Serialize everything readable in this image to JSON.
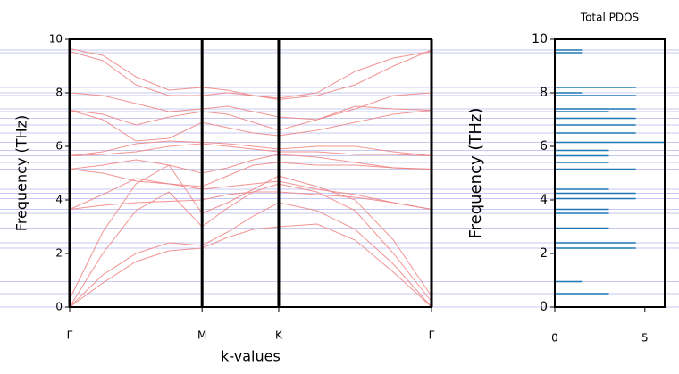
{
  "chart_data": [
    {
      "type": "line",
      "xlabel": "k-values",
      "ylabel": "Frequency (THz)",
      "color": "#f08080",
      "x": [
        0,
        0.144,
        0.289,
        0.433,
        0.577,
        0.688,
        0.8,
        0.911,
        1.078,
        1.244,
        1.411,
        1.577
      ],
      "xlim": [
        0,
        1.577
      ],
      "xticks": [
        {
          "value": 0,
          "label": "Γ"
        },
        {
          "value": 0.577,
          "label": "M"
        },
        {
          "value": 0.911,
          "label": "K"
        },
        {
          "value": 1.577,
          "label": "Γ"
        }
      ],
      "ylim": [
        0,
        10
      ],
      "yticks": [
        0,
        2,
        4,
        6,
        8,
        10
      ],
      "series": [
        {
          "values": [
            0,
            0.9,
            1.7,
            2.1,
            2.2,
            2.6,
            2.9,
            3.0,
            3.1,
            2.5,
            1.3,
            0
          ]
        },
        {
          "values": [
            0,
            1.2,
            2.0,
            2.4,
            2.3,
            2.8,
            3.4,
            3.9,
            3.6,
            2.9,
            1.6,
            0
          ]
        },
        {
          "values": [
            0,
            2.0,
            3.6,
            4.3,
            3.0,
            3.7,
            4.3,
            4.6,
            4.3,
            3.6,
            2.0,
            0.2
          ]
        },
        {
          "values": [
            0.3,
            2.8,
            4.6,
            5.3,
            3.5,
            3.9,
            4.4,
            4.9,
            4.5,
            4.0,
            2.5,
            0.4
          ]
        },
        {
          "values": [
            3.65,
            3.8,
            3.9,
            3.95,
            4.0,
            4.2,
            4.3,
            4.3,
            4.2,
            4.1,
            3.9,
            3.65
          ]
        },
        {
          "values": [
            3.65,
            4.2,
            4.8,
            4.6,
            4.4,
            4.5,
            4.6,
            4.7,
            4.4,
            4.2,
            3.9,
            3.65
          ]
        },
        {
          "values": [
            5.15,
            5.0,
            4.7,
            4.6,
            4.5,
            4.9,
            5.3,
            5.4,
            5.3,
            5.3,
            5.2,
            5.15
          ]
        },
        {
          "values": [
            5.15,
            5.3,
            5.5,
            5.3,
            5.0,
            5.2,
            5.5,
            5.7,
            5.6,
            5.4,
            5.2,
            5.15
          ]
        },
        {
          "values": [
            5.65,
            5.7,
            5.8,
            6.0,
            6.1,
            6.0,
            5.9,
            5.8,
            5.8,
            5.7,
            5.7,
            5.65
          ]
        },
        {
          "values": [
            5.65,
            5.8,
            6.1,
            6.2,
            6.15,
            6.1,
            6.0,
            5.9,
            6.0,
            6.0,
            5.8,
            5.65
          ]
        },
        {
          "values": [
            7.35,
            7.0,
            6.2,
            6.3,
            6.9,
            6.7,
            6.5,
            6.4,
            6.6,
            6.9,
            7.2,
            7.35
          ]
        },
        {
          "values": [
            7.35,
            7.2,
            6.8,
            7.1,
            7.3,
            7.2,
            6.9,
            6.6,
            7.0,
            7.5,
            7.4,
            7.35
          ]
        },
        {
          "values": [
            8.0,
            7.9,
            7.6,
            7.3,
            7.4,
            7.5,
            7.3,
            7.1,
            7.0,
            7.4,
            7.9,
            8.0
          ]
        },
        {
          "values": [
            9.55,
            9.2,
            8.3,
            7.9,
            7.9,
            8.0,
            7.9,
            7.8,
            8.0,
            8.8,
            9.3,
            9.55
          ]
        },
        {
          "values": [
            9.65,
            9.4,
            8.6,
            8.1,
            8.2,
            8.1,
            7.9,
            7.75,
            7.9,
            8.3,
            9.0,
            9.6
          ]
        }
      ]
    },
    {
      "type": "hbar",
      "title": "Total PDOS",
      "ylabel": "Frequency (THz)",
      "color": "#1f77b4",
      "y": [
        9.6,
        9.5,
        8.2,
        8.0,
        7.9,
        7.4,
        7.3,
        7.05,
        6.8,
        6.5,
        6.15,
        5.85,
        5.65,
        5.4,
        5.15,
        4.4,
        4.25,
        4.05,
        3.65,
        3.5,
        2.95,
        2.4,
        2.2,
        0.95,
        0.5,
        0
      ],
      "values": [
        1.5,
        1.5,
        4.5,
        1.5,
        4.5,
        4.5,
        3.0,
        4.5,
        4.5,
        4.5,
        6.1,
        3.0,
        3.0,
        3.0,
        4.5,
        3.0,
        4.5,
        4.5,
        3.0,
        3.0,
        3.0,
        4.5,
        4.5,
        1.5,
        3.0,
        4.5
      ],
      "xlim": [
        0,
        6.1
      ],
      "xticks": [
        0,
        5
      ],
      "ylim": [
        0,
        10
      ],
      "yticks": [
        0,
        2,
        4,
        6,
        8,
        10
      ]
    }
  ]
}
